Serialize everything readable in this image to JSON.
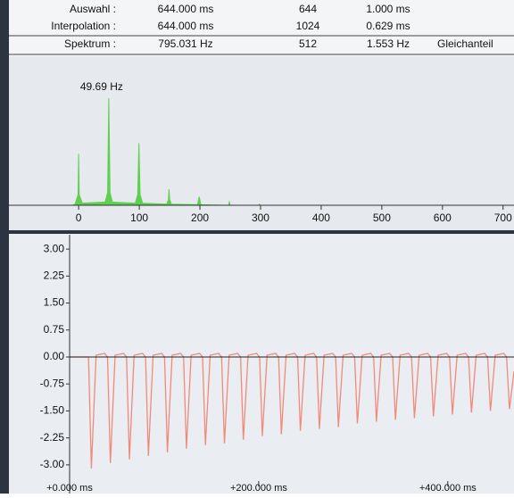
{
  "table": {
    "rows": [
      [
        "Auswahl :",
        "644.000 ms",
        "644",
        "1.000 ms"
      ],
      [
        "Interpolation :",
        "644.000 ms",
        "1024",
        "0.629 ms"
      ],
      [
        "Spektrum :",
        "795.031 Hz",
        "512",
        "1.553 Hz",
        "Gleichanteil"
      ]
    ]
  },
  "chart_data": [
    {
      "type": "area",
      "annotation": "49.69 Hz",
      "xlim": [
        -115,
        718
      ],
      "ylim": [
        0,
        1.1
      ],
      "xticks": [
        0,
        100,
        200,
        300,
        400,
        500,
        600,
        700
      ],
      "series": [
        {
          "color": "#5fcf50",
          "x": [
            -10,
            -6,
            -1,
            0,
            1,
            6,
            43.7,
            47.7,
            49.69,
            51.7,
            55.7,
            93.4,
            97.4,
            99.4,
            101.4,
            105.4,
            145,
            148,
            149.1,
            150.2,
            153,
            196,
            198.8,
            201.6,
            247,
            248.5,
            250,
            297,
            298.2,
            299.4,
            310
          ],
          "values": [
            0,
            0.01,
            0.1,
            0.48,
            0.1,
            0.02,
            0.03,
            0.12,
            1.0,
            0.12,
            0.03,
            0.02,
            0.1,
            0.58,
            0.1,
            0.02,
            0.01,
            0.05,
            0.15,
            0.05,
            0.01,
            0.005,
            0.08,
            0.005,
            0,
            0.03,
            0,
            0,
            0.01,
            0,
            0
          ]
        }
      ]
    },
    {
      "type": "line",
      "xlim": [
        0,
        470
      ],
      "ylim": [
        -3.45,
        3.4
      ],
      "yticks": [
        {
          "value": 3,
          "label": "3.00"
        },
        {
          "value": 2.25,
          "label": "2.25"
        },
        {
          "value": 1.5,
          "label": "1.50"
        },
        {
          "value": 0.75,
          "label": "0.75"
        },
        {
          "value": 0,
          "label": "0.00"
        },
        {
          "value": -0.75,
          "label": "-0.75"
        },
        {
          "value": -1.5,
          "label": "-1.50"
        },
        {
          "value": -2.25,
          "label": "-2.25"
        },
        {
          "value": -3,
          "label": "-3.00"
        }
      ],
      "xticks": [
        {
          "value": 0,
          "label": "+0.000 ms"
        },
        {
          "value": 200,
          "label": "+200.000 ms"
        },
        {
          "value": 400,
          "label": "+400.000 ms"
        }
      ],
      "series": [
        {
          "color": "#f08a7a",
          "x": [
            0,
            20.0,
            23.0,
            28.0,
            37.0,
            40.1,
            43.1,
            48.1,
            57.1,
            60.2,
            63.2,
            68.2,
            77.2,
            80.3,
            83.3,
            88.3,
            97.3,
            100.4,
            103.4,
            108.4,
            117.4,
            120.5,
            123.5,
            128.5,
            137.5,
            140.6,
            143.6,
            148.6,
            157.6,
            160.7,
            163.7,
            168.7,
            177.7,
            180.8,
            183.8,
            188.8,
            197.8,
            200.9,
            203.9,
            208.9,
            217.9,
            221.0,
            224.0,
            229.0,
            238.0,
            241.1,
            244.1,
            249.1,
            258.1,
            261.2,
            264.2,
            269.2,
            278.2,
            281.3,
            284.3,
            289.3,
            298.3,
            301.4,
            304.4,
            309.4,
            318.4,
            321.5,
            324.5,
            329.5,
            338.5,
            341.6,
            344.6,
            349.6,
            358.6,
            361.7,
            364.7,
            369.7,
            378.7,
            381.8,
            384.8,
            389.8,
            398.8,
            401.9,
            404.9,
            409.9,
            418.9,
            422.0,
            425.0,
            430.0,
            439.0,
            442.1,
            445.1,
            450.1,
            459.1,
            462.2,
            465.2,
            470.0
          ],
          "values": [
            0,
            0,
            -3.1,
            0.05,
            0.1,
            0,
            -2.95,
            0.05,
            0.1,
            0,
            -2.85,
            0.05,
            0.1,
            0,
            -2.75,
            0.05,
            0.1,
            0,
            -2.65,
            0.05,
            0.1,
            0,
            -2.55,
            0.05,
            0.1,
            0,
            -2.45,
            0.05,
            0.1,
            0,
            -2.4,
            0.05,
            0.1,
            0,
            -2.3,
            0.05,
            0.1,
            0,
            -2.2,
            0.05,
            0.1,
            0,
            -2.15,
            0.05,
            0.1,
            0,
            -2.05,
            0.05,
            0.1,
            0,
            -2.0,
            0.05,
            0.1,
            0,
            -1.95,
            0.05,
            0.1,
            0,
            -1.85,
            0.05,
            0.1,
            0,
            -1.8,
            0.05,
            0.1,
            0,
            -1.75,
            0.05,
            0.1,
            0,
            -1.7,
            0.05,
            0.1,
            0,
            -1.65,
            0.05,
            0.1,
            0,
            -1.6,
            0.05,
            0.1,
            0,
            -1.55,
            0.05,
            0.1,
            0,
            -1.5,
            0.05,
            0.1,
            0,
            -1.45,
            -0.4
          ]
        }
      ]
    }
  ]
}
